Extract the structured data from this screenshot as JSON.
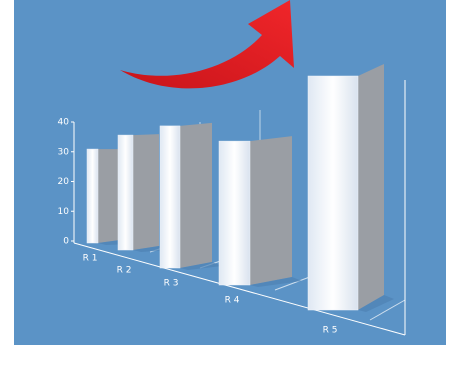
{
  "chart_data": {
    "type": "bar",
    "categories": [
      "R 1",
      "R 2",
      "R 3",
      "R 4",
      "R 5"
    ],
    "values": [
      31,
      34,
      37,
      33,
      45
    ],
    "ylim": [
      0,
      40
    ],
    "yticks": [
      0,
      10,
      20,
      30,
      40
    ],
    "color": "#eef3fa"
  }
}
